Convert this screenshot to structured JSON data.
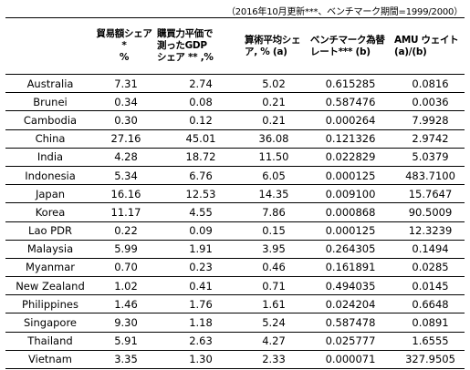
{
  "note": "（2016年10月更新***、ベンチマーク期間=1999/2000）",
  "chart_data": {
    "type": "table",
    "columns": [
      "",
      "貿易額シェア*\n%",
      "購買力平価で\n測ったGDP\nシェア ** ,%",
      "算術平均シェ\nア, %  (a)",
      "ベンチマーク為替\nレート***   (b)",
      "AMU ウェイト\n(a)/(b)"
    ],
    "rows": [
      {
        "country": "Australia",
        "trade_share": "7.31",
        "gdp_share": "2.74",
        "mean_share": "5.02",
        "benchmark_rate": "0.615285",
        "amu_weight": "0.0816"
      },
      {
        "country": "Brunei",
        "trade_share": "0.34",
        "gdp_share": "0.08",
        "mean_share": "0.21",
        "benchmark_rate": "0.587476",
        "amu_weight": "0.0036"
      },
      {
        "country": "Cambodia",
        "trade_share": "0.30",
        "gdp_share": "0.12",
        "mean_share": "0.21",
        "benchmark_rate": "0.000264",
        "amu_weight": "7.9928"
      },
      {
        "country": "China",
        "trade_share": "27.16",
        "gdp_share": "45.01",
        "mean_share": "36.08",
        "benchmark_rate": "0.121326",
        "amu_weight": "2.9742"
      },
      {
        "country": "India",
        "trade_share": "4.28",
        "gdp_share": "18.72",
        "mean_share": "11.50",
        "benchmark_rate": "0.022829",
        "amu_weight": "5.0379"
      },
      {
        "country": "Indonesia",
        "trade_share": "5.34",
        "gdp_share": "6.76",
        "mean_share": "6.05",
        "benchmark_rate": "0.000125",
        "amu_weight": "483.7100"
      },
      {
        "country": "Japan",
        "trade_share": "16.16",
        "gdp_share": "12.53",
        "mean_share": "14.35",
        "benchmark_rate": "0.009100",
        "amu_weight": "15.7647"
      },
      {
        "country": "Korea",
        "trade_share": "11.17",
        "gdp_share": "4.55",
        "mean_share": "7.86",
        "benchmark_rate": "0.000868",
        "amu_weight": "90.5009"
      },
      {
        "country": "Lao PDR",
        "trade_share": "0.22",
        "gdp_share": "0.09",
        "mean_share": "0.15",
        "benchmark_rate": "0.000125",
        "amu_weight": "12.3239"
      },
      {
        "country": "Malaysia",
        "trade_share": "5.99",
        "gdp_share": "1.91",
        "mean_share": "3.95",
        "benchmark_rate": "0.264305",
        "amu_weight": "0.1494"
      },
      {
        "country": "Myanmar",
        "trade_share": "0.70",
        "gdp_share": "0.23",
        "mean_share": "0.46",
        "benchmark_rate": "0.161891",
        "amu_weight": "0.0285"
      },
      {
        "country": "New Zealand",
        "trade_share": "1.02",
        "gdp_share": "0.41",
        "mean_share": "0.71",
        "benchmark_rate": "0.494035",
        "amu_weight": "0.0145"
      },
      {
        "country": "Philippines",
        "trade_share": "1.46",
        "gdp_share": "1.76",
        "mean_share": "1.61",
        "benchmark_rate": "0.024204",
        "amu_weight": "0.6648"
      },
      {
        "country": "Singapore",
        "trade_share": "9.30",
        "gdp_share": "1.18",
        "mean_share": "5.24",
        "benchmark_rate": "0.587478",
        "amu_weight": "0.0891"
      },
      {
        "country": "Thailand",
        "trade_share": "5.91",
        "gdp_share": "2.63",
        "mean_share": "4.27",
        "benchmark_rate": "0.025777",
        "amu_weight": "1.6555"
      },
      {
        "country": "Vietnam",
        "trade_share": "3.35",
        "gdp_share": "1.30",
        "mean_share": "2.33",
        "benchmark_rate": "0.000071",
        "amu_weight": "327.9505"
      }
    ]
  }
}
